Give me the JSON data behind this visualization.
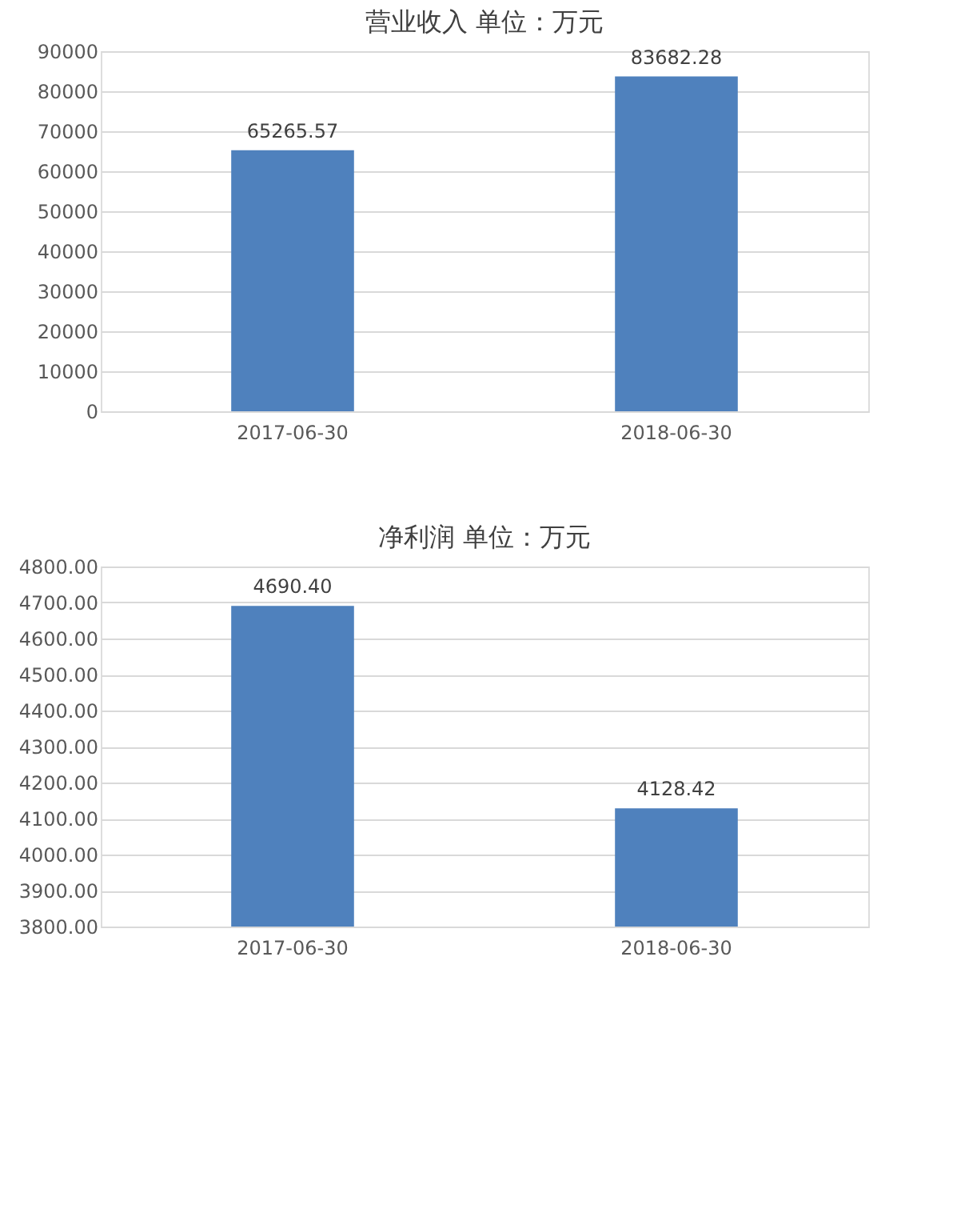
{
  "chart_data": [
    {
      "type": "bar",
      "title": "营业收入  单位：万元",
      "categories": [
        "2017-06-30",
        "2018-06-30"
      ],
      "values": [
        65265.57,
        83682.28
      ],
      "color": "#4f81bd",
      "ylim": [
        0,
        90000
      ],
      "yticks": [
        0,
        10000,
        20000,
        30000,
        40000,
        50000,
        60000,
        70000,
        80000,
        90000
      ],
      "grid": "y",
      "data_labels": true
    },
    {
      "type": "bar",
      "title": "净利润  单位：万元",
      "categories": [
        "2017-06-30",
        "2018-06-30"
      ],
      "values": [
        4690.4,
        4128.42
      ],
      "value_labels": [
        "4690.40",
        "4128.42"
      ],
      "color": "#4f81bd",
      "ylim": [
        3800,
        4800
      ],
      "yticks": [
        {
          "value": 3800,
          "label": "3800.00"
        },
        {
          "value": 3900,
          "label": "3900.00"
        },
        {
          "value": 4000,
          "label": "4000.00"
        },
        {
          "value": 4100,
          "label": "4100.00"
        },
        {
          "value": 4200,
          "label": "4200.00"
        },
        {
          "value": 4300,
          "label": "4300.00"
        },
        {
          "value": 4400,
          "label": "4400.00"
        },
        {
          "value": 4500,
          "label": "4500.00"
        },
        {
          "value": 4600,
          "label": "4600.00"
        },
        {
          "value": 4700,
          "label": "4700.00"
        },
        {
          "value": 4800,
          "label": "4800.00"
        }
      ],
      "grid": "y"
    }
  ]
}
